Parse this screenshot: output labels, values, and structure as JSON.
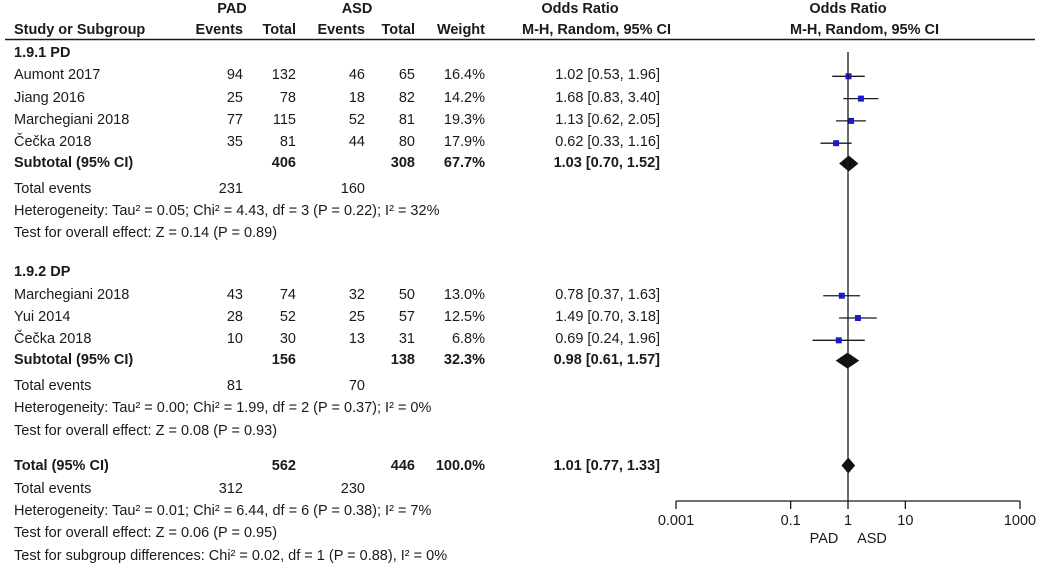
{
  "chart_data": {
    "type": "forest",
    "header": {
      "group_left": "PAD",
      "group_right": "ASD",
      "columns": [
        "Study or Subgroup",
        "Events",
        "Total",
        "Events",
        "Total",
        "Weight",
        "Odds Ratio",
        "Odds Ratio"
      ],
      "method_text": "M-H, Random, 95% CI",
      "plot_method_text": "M-H, Random, 95% CI"
    },
    "subgroups": [
      {
        "label": "1.9.1 PD",
        "studies": [
          {
            "name": "Aumont 2017",
            "e1": "94",
            "n1": "132",
            "e2": "46",
            "n2": "65",
            "weight": "16.4%",
            "ci_text": "1.02 [0.53, 1.96]",
            "or": 1.02,
            "lo": 0.53,
            "hi": 1.96
          },
          {
            "name": "Jiang 2016",
            "e1": "25",
            "n1": "78",
            "e2": "18",
            "n2": "82",
            "weight": "14.2%",
            "ci_text": "1.68 [0.83, 3.40]",
            "or": 1.68,
            "lo": 0.83,
            "hi": 3.4
          },
          {
            "name": "Marchegiani 2018",
            "e1": "77",
            "n1": "115",
            "e2": "52",
            "n2": "81",
            "weight": "19.3%",
            "ci_text": "1.13 [0.62, 2.05]",
            "or": 1.13,
            "lo": 0.62,
            "hi": 2.05
          },
          {
            "name": "Čečka 2018",
            "e1": "35",
            "n1": "81",
            "e2": "44",
            "n2": "80",
            "weight": "17.9%",
            "ci_text": "0.62 [0.33, 1.16]",
            "or": 0.62,
            "lo": 0.33,
            "hi": 1.16
          }
        ],
        "subtotal": {
          "label": "Subtotal (95% CI)",
          "n1": "406",
          "n2": "308",
          "weight": "67.7%",
          "ci_text": "1.03 [0.70, 1.52]",
          "or": 1.03,
          "lo": 0.7,
          "hi": 1.52
        },
        "total_events": {
          "label": "Total events",
          "e1": "231",
          "e2": "160"
        },
        "heterogeneity": "Heterogeneity: Tau² = 0.05; Chi² = 4.43, df = 3 (P = 0.22); I² = 32%",
        "overall_effect": "Test for overall effect: Z = 0.14 (P = 0.89)"
      },
      {
        "label": "1.9.2 DP",
        "studies": [
          {
            "name": "Marchegiani 2018",
            "e1": "43",
            "n1": "74",
            "e2": "32",
            "n2": "50",
            "weight": "13.0%",
            "ci_text": "0.78 [0.37, 1.63]",
            "or": 0.78,
            "lo": 0.37,
            "hi": 1.63
          },
          {
            "name": "Yui 2014",
            "e1": "28",
            "n1": "52",
            "e2": "25",
            "n2": "57",
            "weight": "12.5%",
            "ci_text": "1.49 [0.70, 3.18]",
            "or": 1.49,
            "lo": 0.7,
            "hi": 3.18
          },
          {
            "name": "Čečka 2018",
            "e1": "10",
            "n1": "30",
            "e2": "13",
            "n2": "31",
            "weight": "6.8%",
            "ci_text": "0.69 [0.24, 1.96]",
            "or": 0.69,
            "lo": 0.24,
            "hi": 1.96
          }
        ],
        "subtotal": {
          "label": "Subtotal (95% CI)",
          "n1": "156",
          "n2": "138",
          "weight": "32.3%",
          "ci_text": "0.98 [0.61, 1.57]",
          "or": 0.98,
          "lo": 0.61,
          "hi": 1.57
        },
        "total_events": {
          "label": "Total events",
          "e1": "81",
          "e2": "70"
        },
        "heterogeneity": "Heterogeneity: Tau² = 0.00; Chi² = 1.99, df = 2 (P = 0.37); I² = 0%",
        "overall_effect": "Test for overall effect: Z = 0.08 (P = 0.93)"
      }
    ],
    "total": {
      "label": "Total (95% CI)",
      "n1": "562",
      "n2": "446",
      "weight": "100.0%",
      "ci_text": "1.01 [0.77, 1.33]",
      "or": 1.01,
      "lo": 0.77,
      "hi": 1.33,
      "total_events": {
        "label": "Total events",
        "e1": "312",
        "e2": "230"
      },
      "heterogeneity": "Heterogeneity: Tau² = 0.01; Chi² = 6.44, df = 6 (P = 0.38); I² = 7%",
      "overall_effect": "Test for overall effect: Z = 0.06 (P = 0.95)",
      "subgroup_differences": "Test for subgroup differences: Chi² = 0.02, df = 1 (P = 0.88), I² = 0%"
    },
    "axis": {
      "scale": "log",
      "xlim": [
        0.001,
        1000
      ],
      "ticks": [
        0.001,
        0.1,
        1,
        10,
        1000
      ],
      "tick_labels": [
        "0.001",
        "0.1",
        "1",
        "10",
        "1000"
      ],
      "favours_left": "PAD",
      "favours_right": "ASD"
    },
    "colors": {
      "marker": "#1a1acc",
      "line": "#1a1a1a",
      "diamond": "#111111"
    }
  }
}
